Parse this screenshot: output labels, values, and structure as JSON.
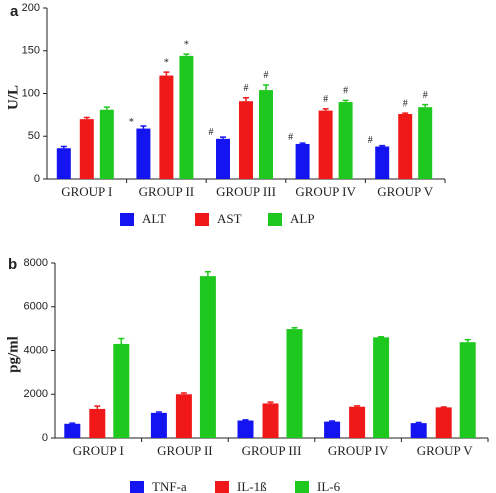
{
  "chart_data": [
    {
      "type": "bar",
      "label": "a",
      "ylabel": "U/L",
      "categories": [
        "GROUP I",
        "GROUP II",
        "GROUP III",
        "GROUP IV",
        "GROUP V"
      ],
      "ylim": [
        0,
        200
      ],
      "yticks": [
        0,
        50,
        100,
        150,
        200
      ],
      "series": [
        {
          "name": "ALT",
          "color": "#1414f0",
          "values": [
            36,
            59,
            47,
            41,
            38
          ],
          "errors": [
            2,
            3,
            2,
            1,
            1
          ],
          "annotations": [
            null,
            "*",
            "#",
            "#",
            "#"
          ]
        },
        {
          "name": "AST",
          "color": "#f01818",
          "values": [
            70,
            121,
            91,
            80,
            76
          ],
          "errors": [
            2,
            4,
            4,
            2,
            1
          ],
          "annotations": [
            null,
            "*",
            "#",
            "#",
            "#"
          ]
        },
        {
          "name": "ALP",
          "color": "#1ec81e",
          "values": [
            81,
            144,
            104,
            90,
            84
          ],
          "errors": [
            3,
            2,
            6,
            2,
            3
          ],
          "annotations": [
            null,
            "*",
            "#",
            "#",
            "#"
          ]
        }
      ]
    },
    {
      "type": "bar",
      "label": "b",
      "ylabel": "pg/ml",
      "categories": [
        "GROUP I",
        "GROUP II",
        "GROUP III",
        "GROUP IV",
        "GROUP V"
      ],
      "ylim": [
        0,
        8000
      ],
      "yticks": [
        0,
        2000,
        4000,
        6000,
        8000
      ],
      "series": [
        {
          "name": "TNF-a",
          "color": "#1414f0",
          "values": [
            650,
            1150,
            800,
            750,
            680
          ],
          "errors": [
            30,
            40,
            30,
            30,
            30
          ]
        },
        {
          "name": "IL-1ß",
          "color": "#f01818",
          "values": [
            1330,
            2000,
            1580,
            1430,
            1400
          ],
          "errors": [
            130,
            60,
            60,
            40,
            20
          ]
        },
        {
          "name": "IL-6",
          "color": "#1ec81e",
          "values": [
            4300,
            7400,
            4980,
            4600,
            4380
          ],
          "errors": [
            250,
            200,
            60,
            30,
            120
          ]
        }
      ]
    }
  ]
}
